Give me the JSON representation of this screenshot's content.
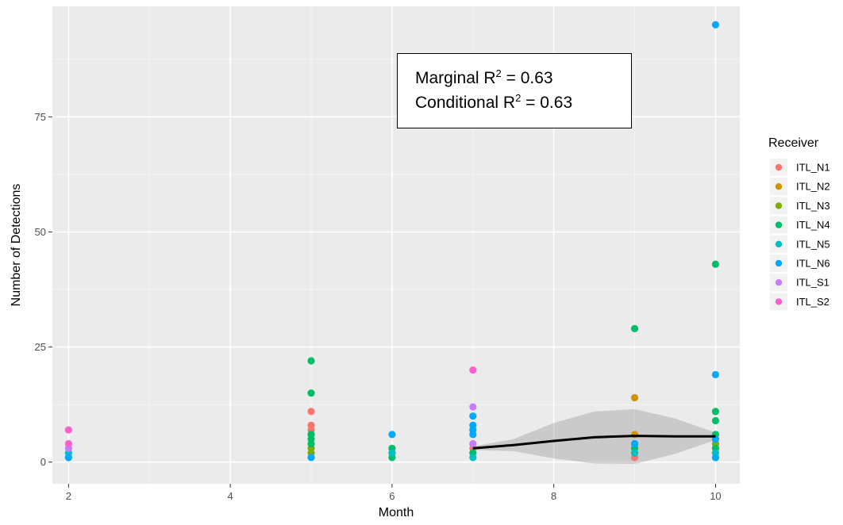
{
  "chart_data": {
    "type": "scatter",
    "xlabel": "Month",
    "ylabel": "Number of Detections",
    "xlim": [
      1.8,
      10.3
    ],
    "ylim": [
      -4.7,
      99
    ],
    "x_ticks": [
      2,
      4,
      6,
      8,
      10
    ],
    "y_ticks": [
      0,
      25,
      50,
      75
    ],
    "grid": true,
    "legend": {
      "title": "Receiver",
      "placement": "right",
      "entries": [
        "ITL_N1",
        "ITL_N2",
        "ITL_N3",
        "ITL_N4",
        "ITL_N5",
        "ITL_N6",
        "ITL_S1",
        "ITL_S2"
      ]
    },
    "colors": {
      "ITL_N1": "#F8766D",
      "ITL_N2": "#CD9600",
      "ITL_N3": "#7CAE00",
      "ITL_N4": "#00BE67",
      "ITL_N5": "#00BFC4",
      "ITL_N6": "#00A9FF",
      "ITL_S1": "#C77CFF",
      "ITL_S2": "#FF61CC"
    },
    "series": [
      {
        "name": "ITL_N1",
        "points": [
          [
            5,
            11
          ],
          [
            5,
            8
          ],
          [
            5,
            7
          ],
          [
            7,
            3
          ],
          [
            9,
            1
          ],
          [
            10,
            3
          ]
        ]
      },
      {
        "name": "ITL_N2",
        "points": [
          [
            5,
            6
          ],
          [
            9,
            14
          ],
          [
            9,
            6
          ],
          [
            10,
            2
          ]
        ]
      },
      {
        "name": "ITL_N3",
        "points": [
          [
            5,
            3
          ],
          [
            5,
            2
          ],
          [
            6,
            2
          ],
          [
            9,
            3
          ],
          [
            10,
            4
          ]
        ]
      },
      {
        "name": "ITL_N4",
        "points": [
          [
            5,
            22
          ],
          [
            5,
            15
          ],
          [
            5,
            6
          ],
          [
            5,
            5
          ],
          [
            5,
            4
          ],
          [
            6,
            3
          ],
          [
            6,
            1
          ],
          [
            7,
            2
          ],
          [
            9,
            29
          ],
          [
            9,
            4
          ],
          [
            9,
            3
          ],
          [
            10,
            43
          ],
          [
            10,
            11
          ],
          [
            10,
            9
          ],
          [
            10,
            6
          ],
          [
            10,
            3
          ]
        ]
      },
      {
        "name": "ITL_N5",
        "points": [
          [
            2,
            2
          ],
          [
            2,
            1
          ],
          [
            6,
            2
          ],
          [
            7,
            1
          ],
          [
            9,
            2
          ],
          [
            10,
            2
          ],
          [
            10,
            1
          ]
        ]
      },
      {
        "name": "ITL_N6",
        "points": [
          [
            2,
            1
          ],
          [
            5,
            1
          ],
          [
            6,
            6
          ],
          [
            7,
            10
          ],
          [
            7,
            8
          ],
          [
            7,
            7
          ],
          [
            7,
            6
          ],
          [
            9,
            4
          ],
          [
            10,
            95
          ],
          [
            10,
            19
          ],
          [
            10,
            5
          ],
          [
            10,
            1
          ]
        ]
      },
      {
        "name": "ITL_S1",
        "points": [
          [
            2,
            3
          ],
          [
            7,
            12
          ],
          [
            7,
            4
          ]
        ]
      },
      {
        "name": "ITL_S2",
        "points": [
          [
            2,
            7
          ],
          [
            2,
            4
          ],
          [
            7,
            20
          ]
        ]
      }
    ],
    "fit_line": {
      "x": [
        7,
        7.5,
        8,
        8.5,
        9,
        9.5,
        10
      ],
      "y": [
        3,
        3.7,
        4.6,
        5.4,
        5.7,
        5.6,
        5.6
      ],
      "ci_upper": [
        3.4,
        5,
        8.5,
        11,
        11.5,
        9.5,
        6.4
      ],
      "ci_lower": [
        2.6,
        2.4,
        0.8,
        -0.3,
        -0.4,
        1.8,
        4.8
      ]
    },
    "annotation": {
      "line1_prefix": "Marginal R",
      "line1_suffix": " = 0.63",
      "line2_prefix": "Conditional R",
      "line2_suffix": " = 0.63",
      "superscript": "2"
    }
  }
}
